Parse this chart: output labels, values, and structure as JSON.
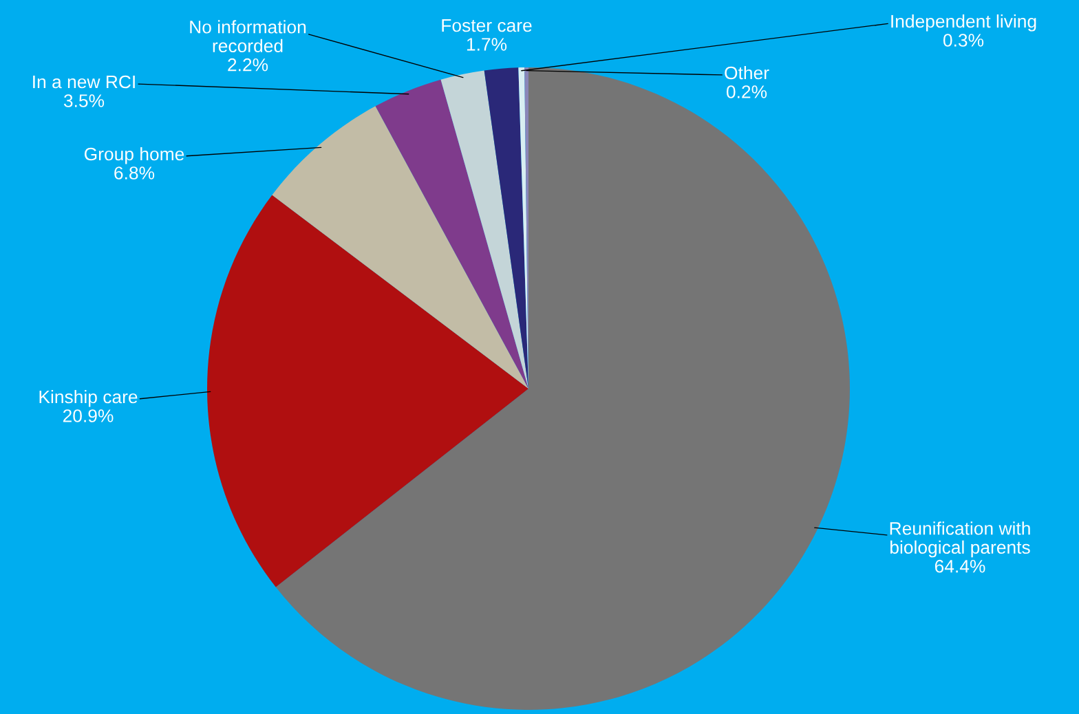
{
  "chart_data": {
    "type": "pie",
    "categories": [
      "Reunification with\nbiological parents",
      "Kinship care",
      "Group home",
      "In a new RCI",
      "No information\nrecorded",
      "Foster care",
      "Independent living",
      "Other"
    ],
    "values": [
      64.4,
      20.9,
      6.8,
      3.5,
      2.2,
      1.7,
      0.3,
      0.2
    ],
    "value_labels": [
      "64.4%",
      "20.9%",
      "6.8%",
      "3.5%",
      "2.2%",
      "1.7%",
      "0.3%",
      "0.2%"
    ],
    "colors": [
      "#757575",
      "#b00f10",
      "#c2bca6",
      "#7f3b8c",
      "#c4d5d8",
      "#2a2878",
      "#d8eef2",
      "#8a86b8"
    ],
    "legend": false
  }
}
